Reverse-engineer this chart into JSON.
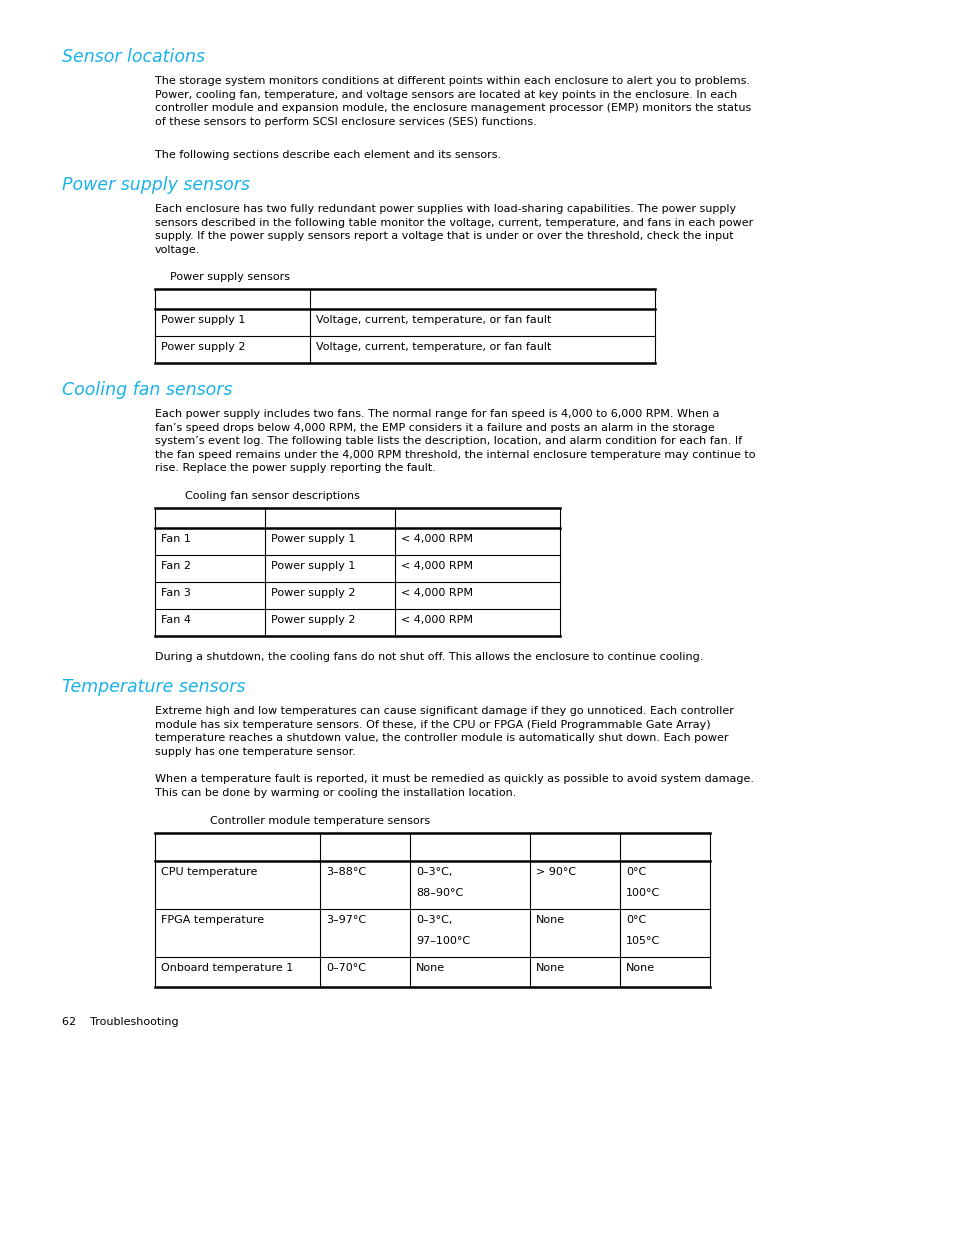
{
  "bg_color": "#ffffff",
  "heading_color": "#1ab2e8",
  "text_color": "#000000",
  "heading1": "Sensor locations",
  "para1": "The storage system monitors conditions at different points within each enclosure to alert you to problems.\nPower, cooling fan, temperature, and voltage sensors are located at key points in the enclosure. In each\ncontroller module and expansion module, the enclosure management processor (EMP) monitors the status\nof these sensors to perform SCSI enclosure services (SES) functions.",
  "para2": "The following sections describe each element and its sensors.",
  "heading2": "Power supply sensors",
  "para3": "Each enclosure has two fully redundant power supplies with load-sharing capabilities. The power supply\nsensors described in the following table monitor the voltage, current, temperature, and fans in each power\nsupply. If the power supply sensors report a voltage that is under or over the threshold, check the input\nvoltage.",
  "table1_caption": "Power supply sensors",
  "table1_rows": [
    [
      "Power supply 1",
      "Voltage, current, temperature, or fan fault"
    ],
    [
      "Power supply 2",
      "Voltage, current, temperature, or fan fault"
    ]
  ],
  "heading3": "Cooling fan sensors",
  "para4": "Each power supply includes two fans. The normal range for fan speed is 4,000 to 6,000 RPM. When a\nfan’s speed drops below 4,000 RPM, the EMP considers it a failure and posts an alarm in the storage\nsystem’s event log. The following table lists the description, location, and alarm condition for each fan. If\nthe fan speed remains under the 4,000 RPM threshold, the internal enclosure temperature may continue to\nrise. Replace the power supply reporting the fault.",
  "table2_caption": "Cooling fan sensor descriptions",
  "table2_rows": [
    [
      "Fan 1",
      "Power supply 1",
      "< 4,000 RPM"
    ],
    [
      "Fan 2",
      "Power supply 1",
      "< 4,000 RPM"
    ],
    [
      "Fan 3",
      "Power supply 2",
      "< 4,000 RPM"
    ],
    [
      "Fan 4",
      "Power supply 2",
      "< 4,000 RPM"
    ]
  ],
  "para5": "During a shutdown, the cooling fans do not shut off. This allows the enclosure to continue cooling.",
  "heading4": "Temperature sensors",
  "para6": "Extreme high and low temperatures can cause significant damage if they go unnoticed. Each controller\nmodule has six temperature sensors. Of these, if the CPU or FPGA (Field Programmable Gate Array)\ntemperature reaches a shutdown value, the controller module is automatically shut down. Each power\nsupply has one temperature sensor.",
  "para7": "When a temperature fault is reported, it must be remedied as quickly as possible to avoid system damage.\nThis can be done by warming or cooling the installation location.",
  "table3_caption": "Controller module temperature sensors",
  "table3_rows": [
    [
      "CPU temperature",
      "3–88°C",
      "0–3°C,\n88–90°C",
      "> 90°C",
      "0°C\n100°C"
    ],
    [
      "FPGA temperature",
      "3–97°C",
      "0–3°C,\n97–100°C",
      "None",
      "0°C\n105°C"
    ],
    [
      "Onboard temperature 1",
      "0–70°C",
      "None",
      "None",
      "None"
    ]
  ],
  "footer_text": "62    Troubleshooting"
}
